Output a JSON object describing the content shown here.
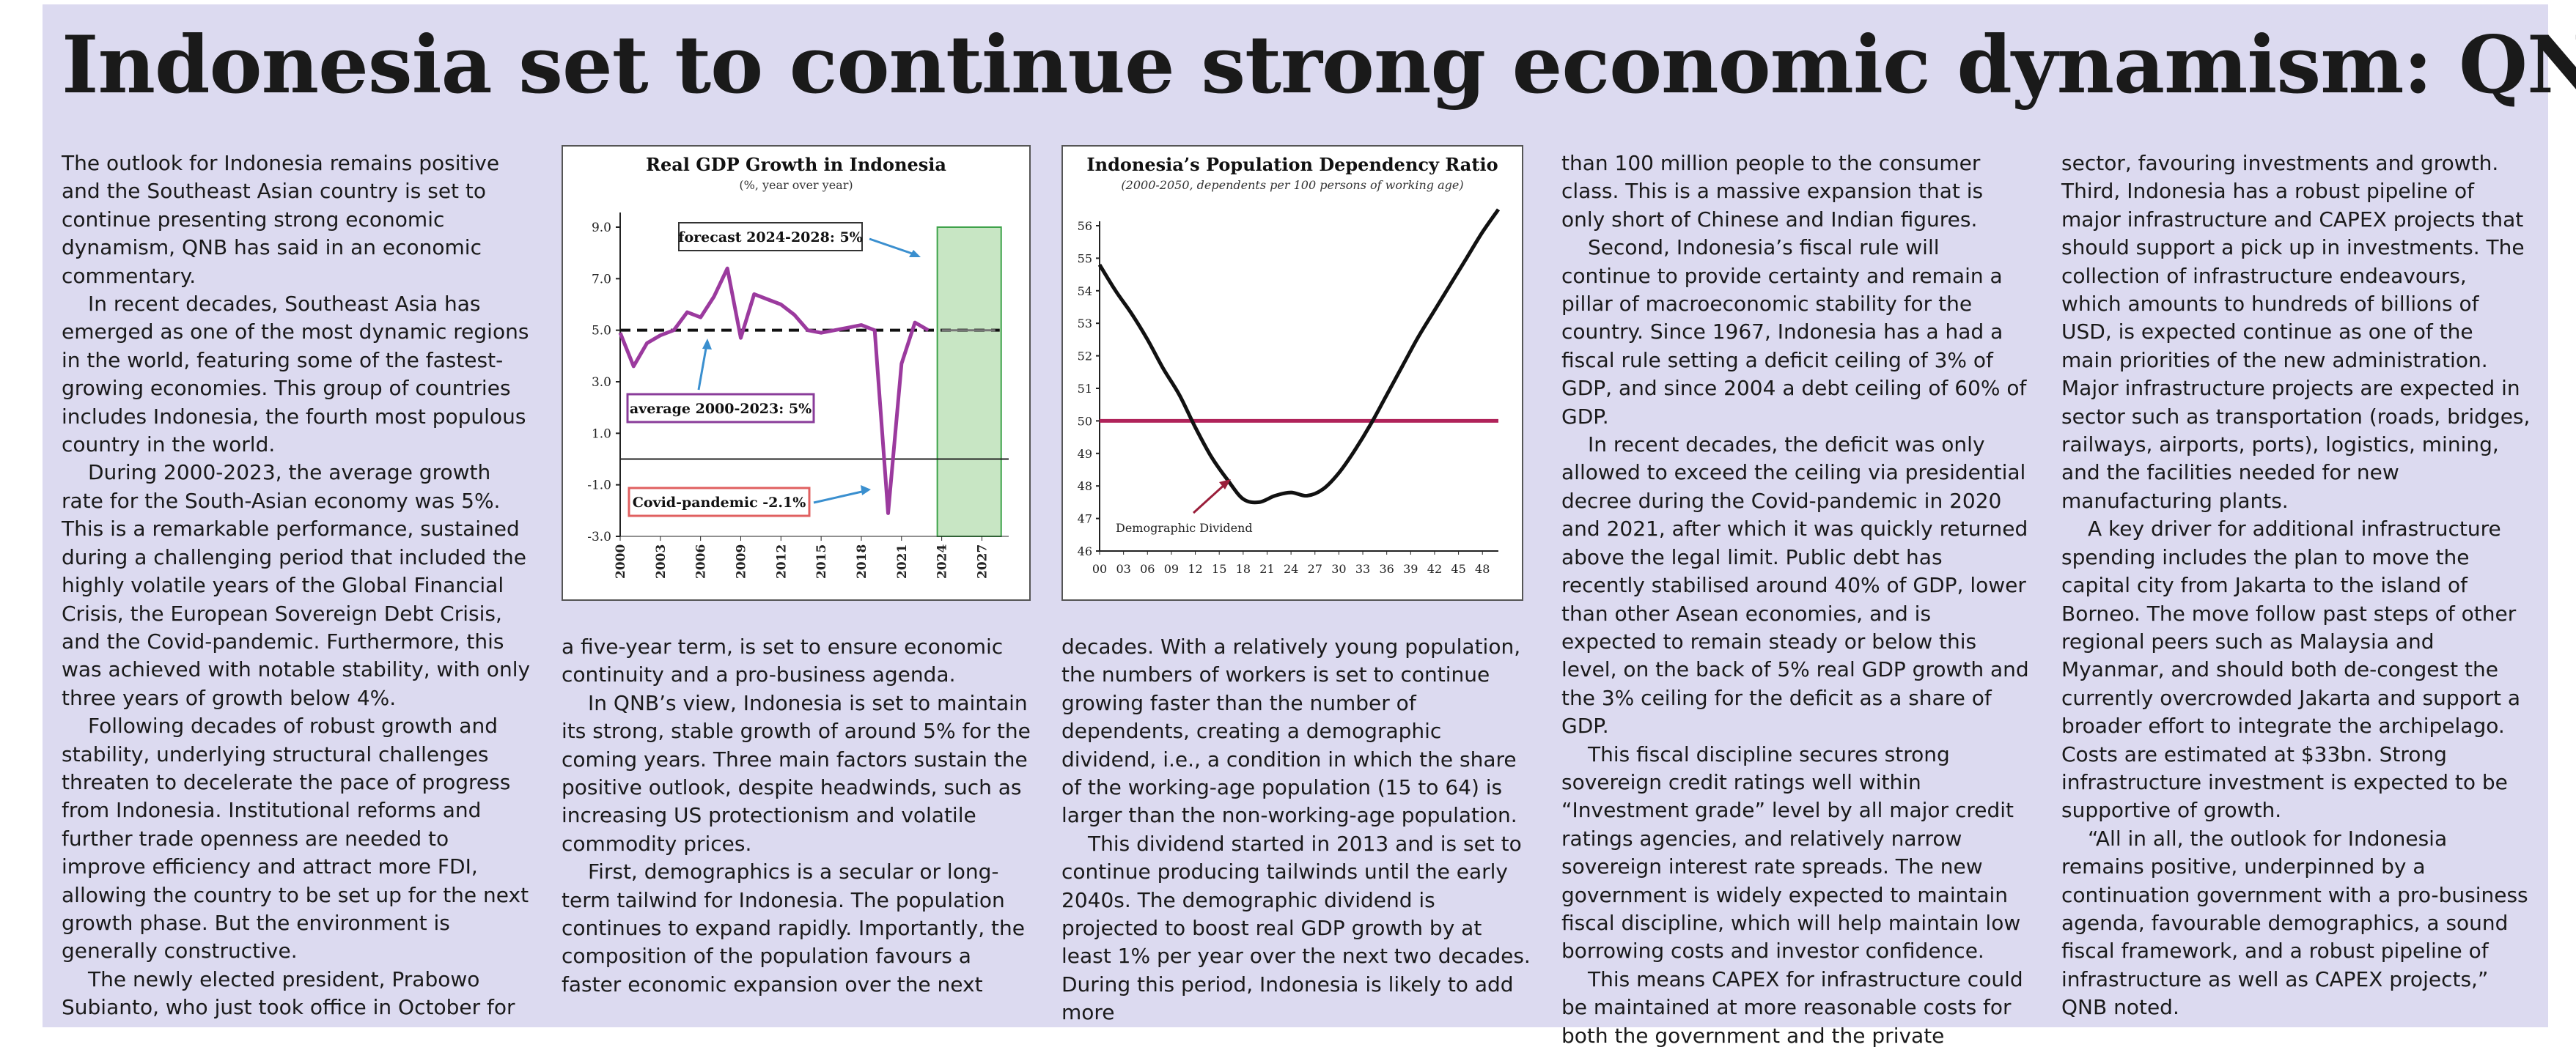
{
  "headline": "Indonesia set to continue strong economic dynamism: QNB",
  "columns": [
    {
      "paragraphs": [
        "The outlook for Indonesia remains positive and the Southeast Asian country is set to continue presenting strong economic dynamism, QNB has said in an economic commentary.",
        "In recent decades, Southeast Asia has emerged as one of the most dynamic regions in the world, featuring some of the fastest-growing economies. This group of countries includes Indonesia, the fourth most populous country in the world.",
        "During 2000-2023, the average growth rate for the South-Asian economy was 5%. This is a remarkable performance, sustained during a challenging period that included the highly volatile years of the Global Financial Crisis, the European Sovereign Debt Crisis, and the Covid-pandemic. Furthermore, this was achieved with notable stability, with only three years of growth below 4%.",
        "Following decades of robust growth and stability, underlying structural challenges threaten to decelerate the pace of progress from Indonesia. Institutional reforms and further trade openness are needed to improve efficiency and attract more FDI, allowing the country to be set up for the next growth phase. But the environment is generally constructive.",
        "The newly elected president, Prabowo Subianto, who just took office in October for"
      ]
    },
    {
      "paragraphs": [
        "a five-year term, is set to ensure economic continuity and a pro-business agenda.",
        "In QNB’s view, Indonesia is set to maintain its strong, stable growth of around 5% for the coming years. Three main factors sustain the positive outlook, despite headwinds, such as increasing US protectionism and volatile commodity prices.",
        "First, demographics is a secular or long-term tailwind for Indonesia. The population continues to expand rapidly. Importantly, the composition of the population favours a faster economic expansion over the next"
      ]
    },
    {
      "paragraphs": [
        "decades. With a relatively young population, the numbers of workers is set to continue growing faster than the number of dependents, creating a demographic dividend, i.e., a condition in which the share of the working-age population (15 to 64) is larger than the non-working-age population.",
        "This dividend started in 2013 and is set to continue producing tailwinds until the early 2040s. The demographic dividend is projected to boost real GDP growth by at least 1% per year over the next two decades. During this period, Indonesia is likely to add more"
      ]
    },
    {
      "paragraphs": [
        "than 100 million people to the consumer class. This is a massive expansion that is only short of Chinese and Indian figures.",
        "Second, Indonesia’s fiscal rule will continue to provide certainty and remain a pillar of macroeconomic stability for the country. Since 1967, Indonesia has a had a fiscal rule setting a deficit ceiling of 3% of GDP, and since 2004 a debt ceiling of 60% of GDP.",
        "In recent decades, the deficit was only allowed to exceed the ceiling via presidential decree during the Covid-pandemic in 2020 and 2021, after which it was quickly returned above the legal limit. Public debt has recently stabilised around 40% of GDP, lower than other Asean economies, and is expected to remain steady or below this level, on the back of 5% real GDP growth and the 3% ceiling for the deficit as a share of GDP.",
        "This fiscal discipline secures strong sovereign credit ratings well within “Investment grade” level by all major credit ratings agencies, and relatively narrow sovereign interest rate spreads. The new government is widely expected to maintain fiscal discipline, which will help maintain low borrowing costs and investor confidence.",
        "This means CAPEX for infrastructure could be maintained at more reasonable costs for both the government and the private"
      ]
    },
    {
      "paragraphs": [
        "sector, favouring investments and growth. Third, Indonesia has a robust pipeline of major infrastructure and CAPEX projects that should support a pick up in investments. The collection of infrastructure endeavours, which amounts to hundreds of billions of USD, is expected continue as one of the main priorities of the new administration. Major infrastructure projects are expected in sector such as transportation (roads, bridges, railways, airports, ports), logistics, mining, and the facilities needed for new manufacturing plants.",
        "A key driver for additional infrastructure spending includes the plan to move the capital city from Jakarta to the island of Borneo. The move follow past steps of other regional peers such as Malaysia and Myanmar, and should both de-congest the currently overcrowded Jakarta and support a broader effort to integrate the archipelago. Costs are estimated at $33bn. Strong infrastructure investment is expected to be supportive of growth.",
        "“All in all, the outlook for Indonesia remains positive, underpinned by a continuation government with a pro-business agenda, favourable demographics, a sound fiscal framework, and a robust pipeline of infrastructure as well as CAPEX projects,” QNB noted."
      ]
    }
  ],
  "chart_data": [
    {
      "type": "line",
      "title": "Real GDP Growth in Indonesia",
      "subtitle": "(%, year over year)",
      "x": [
        2000,
        2001,
        2002,
        2003,
        2004,
        2005,
        2006,
        2007,
        2008,
        2009,
        2010,
        2011,
        2012,
        2013,
        2014,
        2015,
        2016,
        2017,
        2018,
        2019,
        2020,
        2021,
        2022,
        2023
      ],
      "series": [
        {
          "values": [
            4.9,
            3.6,
            4.5,
            4.8,
            5.0,
            5.7,
            5.5,
            6.3,
            7.4,
            4.7,
            6.4,
            6.2,
            6.0,
            5.6,
            5.0,
            4.9,
            5.0,
            5.1,
            5.2,
            5.0,
            -2.1,
            3.7,
            5.3,
            5.0
          ],
          "color": "#9b3a9e"
        }
      ],
      "forecast": {
        "x": [
          2024,
          2025,
          2026,
          2027,
          2028
        ],
        "values": [
          5.0,
          5.0,
          5.0,
          5.0,
          5.0
        ]
      },
      "average_line": 5.0,
      "xticks": [
        "2000",
        "2003",
        "2006",
        "2009",
        "2012",
        "2015",
        "2018",
        "2021",
        "2024",
        "2027"
      ],
      "yticks": [
        "9.0",
        "7.0",
        "5.0",
        "3.0",
        "1.0",
        "-1.0",
        "-3.0"
      ],
      "ylim": [
        -3,
        9
      ],
      "annotations": {
        "forecast": "forecast 2024-2028: 5%",
        "average": "average 2000-2023: 5%",
        "covid": "Covid-pandemic -2.1%"
      },
      "colors": {
        "line": "#9b3a9e",
        "forecast_fill": "#c8e6c4",
        "forecast_border": "#3ea24a",
        "arrow": "#3a8fcf",
        "avg_box": "#8a3c9a",
        "covid_box": "#e06060",
        "forecast_box": "#333333"
      }
    },
    {
      "type": "line",
      "title": "Indonesia’s Population Dependency Ratio",
      "subtitle": "(2000-2050, dependents per 100 persons of working age)",
      "x": [
        2000,
        2002,
        2004,
        2006,
        2008,
        2010,
        2012,
        2014,
        2016,
        2018,
        2020,
        2022,
        2024,
        2026,
        2028,
        2030,
        2032,
        2034,
        2036,
        2038,
        2040,
        2042,
        2044,
        2046,
        2048,
        2050
      ],
      "series": [
        {
          "values": [
            54.8,
            54.0,
            53.3,
            52.5,
            51.6,
            50.8,
            49.8,
            48.9,
            48.2,
            47.6,
            47.5,
            47.7,
            47.8,
            47.7,
            47.9,
            48.4,
            49.1,
            49.9,
            50.8,
            51.7,
            52.6,
            53.4,
            54.2,
            55.0,
            55.8,
            56.5
          ],
          "color": "#111111"
        }
      ],
      "reference_line": 50,
      "xticks": [
        "00",
        "03",
        "06",
        "09",
        "12",
        "15",
        "18",
        "21",
        "24",
        "27",
        "30",
        "33",
        "36",
        "39",
        "42",
        "45",
        "48"
      ],
      "yticks": [
        "56",
        "55",
        "54",
        "53",
        "52",
        "51",
        "50",
        "49",
        "48",
        "47",
        "46"
      ],
      "ylim": [
        46,
        56
      ],
      "annotations": {
        "dividend": "Demographic Dividend"
      },
      "colors": {
        "line": "#111111",
        "reference": "#b0235a",
        "arrow": "#9a1e3a"
      }
    }
  ]
}
